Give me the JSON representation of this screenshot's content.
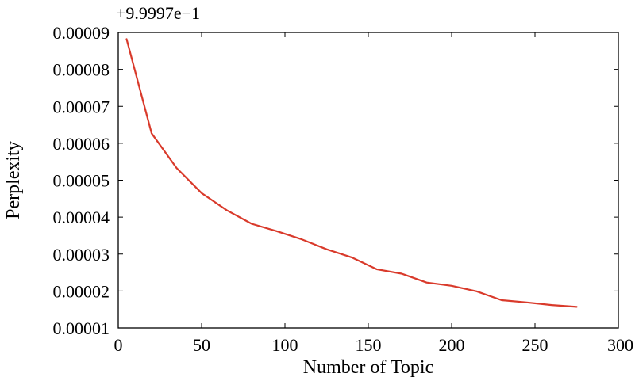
{
  "chart_data": {
    "type": "line",
    "title": "",
    "xlabel": "Number of Topic",
    "ylabel": "Perplexity",
    "offset_label": "+9.9997e−1",
    "xlim": [
      0,
      300
    ],
    "ylim": [
      1e-05,
      9e-05
    ],
    "grid": false,
    "legend": "none",
    "x_ticks": [
      0,
      50,
      100,
      150,
      200,
      250,
      300
    ],
    "x_tick_labels": [
      "0",
      "50",
      "100",
      "150",
      "200",
      "250",
      "300"
    ],
    "y_ticks": [
      1e-05,
      2e-05,
      3e-05,
      4e-05,
      5e-05,
      6e-05,
      7e-05,
      8e-05,
      9e-05
    ],
    "y_tick_labels": [
      "0.00001",
      "0.00002",
      "0.00003",
      "0.00004",
      "0.00005",
      "0.00006",
      "0.00007",
      "0.00008",
      "0.00009"
    ],
    "series": [
      {
        "color": "#d93a2b",
        "x": [
          5,
          20,
          35,
          50,
          65,
          80,
          95,
          110,
          125,
          140,
          155,
          170,
          185,
          200,
          215,
          230,
          245,
          260,
          275
        ],
        "y": [
          8.82e-05,
          6.27e-05,
          5.33e-05,
          4.65e-05,
          4.19e-05,
          3.82e-05,
          3.62e-05,
          3.4e-05,
          3.13e-05,
          2.91e-05,
          2.59e-05,
          2.47e-05,
          2.23e-05,
          2.14e-05,
          1.99e-05,
          1.75e-05,
          1.69e-05,
          1.62e-05,
          1.57e-05
        ]
      }
    ]
  }
}
